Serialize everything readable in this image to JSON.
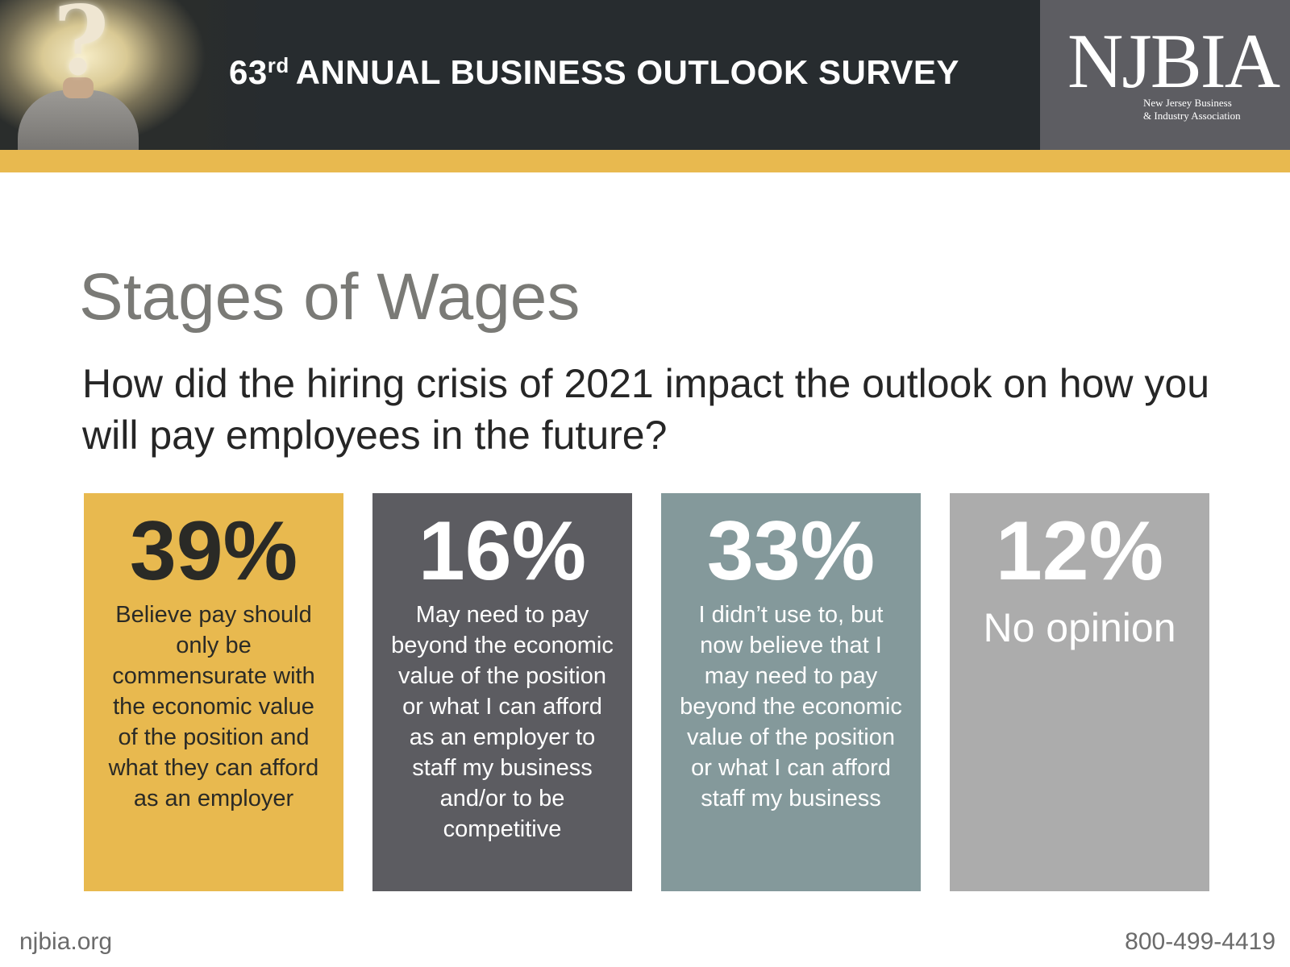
{
  "header": {
    "title_number": "63",
    "title_suffix": "rd",
    "title_text": "ANNUAL BUSINESS OUTLOOK SURVEY",
    "logo_text": "NJBIA",
    "logo_sub_line1": "New Jersey Business",
    "logo_sub_line2": "& Industry Association",
    "photo_icon": "question-mark-head-photo"
  },
  "colors": {
    "header_bg": "#272c2f",
    "gold_accent": "#e8b94f",
    "logo_bg": "#5d5d62",
    "card_gold": "#e8b94f",
    "card_charcoal": "#5c5c61",
    "card_slate": "#84999b",
    "card_gray": "#acacac"
  },
  "main": {
    "title": "Stages of Wages",
    "question": "How did the hiring crisis of 2021 impact the outlook on how you will pay employees in the future?"
  },
  "chart_data": {
    "type": "table",
    "categories": [
      "Believe pay should only be commensurate with the economic value of the position and what they can afford as an employer",
      "May need to pay beyond the economic value of the position or what I can afford as an employer to staff my business and/or to be competitive",
      "I didn’t use to, but now believe that I may need to pay beyond the economic value of the position or what I can afford staff my business",
      "No opinion"
    ],
    "values": [
      39,
      16,
      33,
      12
    ],
    "labels": [
      "39%",
      "16%",
      "33%",
      "12%"
    ],
    "units": "%"
  },
  "cards": [
    {
      "percent": "39%",
      "description": "Believe pay should only be commensurate with the economic value of the position and what they can afford as an employer"
    },
    {
      "percent": "16%",
      "description": "May need to pay beyond the economic value of the position or what I can afford as an employer to staff my business and/or to be competitive"
    },
    {
      "percent": "33%",
      "description": "I didn’t use to, but now believe that I may need to pay beyond the economic value of the position or what I can afford staff my business"
    },
    {
      "percent": "12%",
      "description": "No opinion"
    }
  ],
  "footer": {
    "website": "njbia.org",
    "phone": "800-499-4419"
  }
}
